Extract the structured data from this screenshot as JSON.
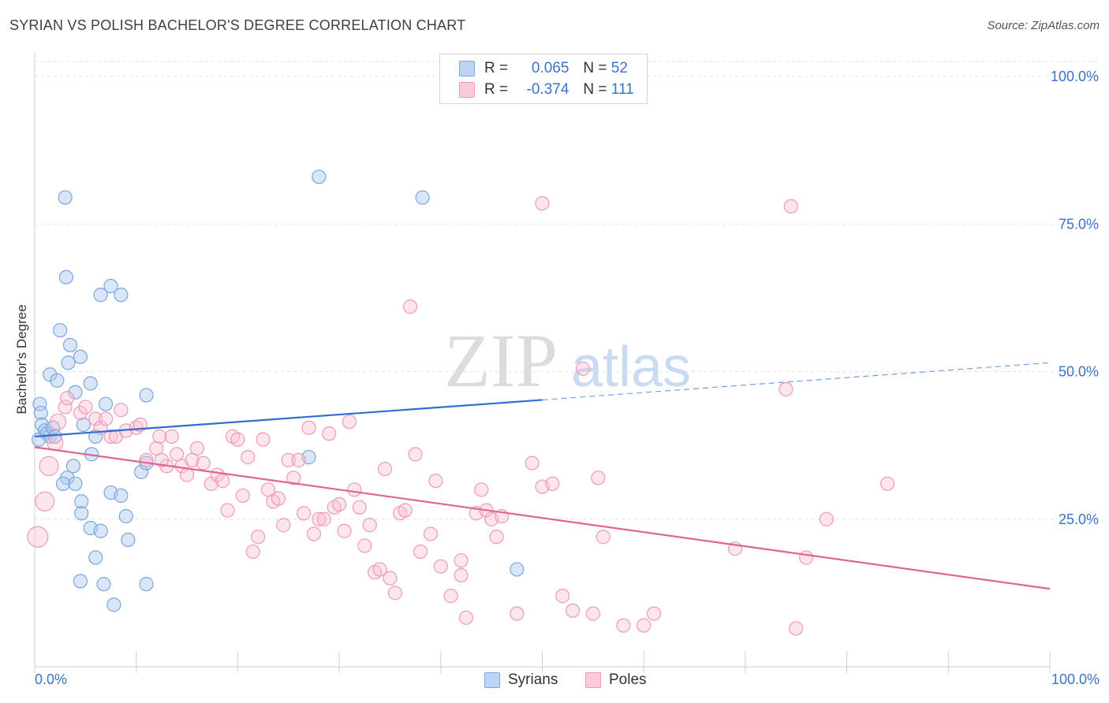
{
  "title": "SYRIAN VS POLISH BACHELOR'S DEGREE CORRELATION CHART",
  "source": "Source: ZipAtlas.com",
  "watermark": {
    "zip": "ZIP",
    "atlas": "atlas"
  },
  "legend": {
    "r_label": "R =",
    "n_label": "N =",
    "series": [
      {
        "name": "Syrians",
        "r": "0.065",
        "n": "52",
        "color": "#8fb8e8",
        "line": "#2f6ecf"
      },
      {
        "name": "Poles",
        "r": "-0.374",
        "n": "111",
        "color": "#f5a9c2",
        "line": "#e06592"
      }
    ]
  },
  "chart_data": {
    "type": "scatter",
    "title": "SYRIAN VS POLISH BACHELOR'S DEGREE CORRELATION CHART",
    "xlabel": "",
    "ylabel": "Bachelor's Degree",
    "xlim": [
      0,
      100
    ],
    "ylim": [
      0,
      100
    ],
    "x_tick_labels": [
      "0.0%",
      "100.0%"
    ],
    "y_ticks": [
      25,
      50,
      75,
      100
    ],
    "y_tick_labels": [
      "25.0%",
      "50.0%",
      "75.0%",
      "100.0%"
    ],
    "grid": true,
    "series": [
      {
        "name": "Syrians",
        "trend": {
          "x0": 0,
          "y0": 39,
          "x1": 50,
          "y1": 45.2,
          "dashed_to": 100,
          "dashed_y": 51.5
        },
        "points": [
          [
            0.5,
            44.5
          ],
          [
            0.6,
            43
          ],
          [
            0.7,
            41
          ],
          [
            1,
            40
          ],
          [
            1.2,
            39.5
          ],
          [
            1.5,
            39
          ],
          [
            0.4,
            38.5
          ],
          [
            1.8,
            40.5
          ],
          [
            2,
            39
          ],
          [
            1.5,
            49.5
          ],
          [
            2.2,
            48.5
          ],
          [
            2.5,
            57
          ],
          [
            3.5,
            54.5
          ],
          [
            3.3,
            51.5
          ],
          [
            4.5,
            52.5
          ],
          [
            5.5,
            48
          ],
          [
            4,
            46.5
          ],
          [
            3,
            79.5
          ],
          [
            3.1,
            66
          ],
          [
            6.5,
            63
          ],
          [
            7.5,
            64.5
          ],
          [
            8.5,
            63
          ],
          [
            4.8,
            41
          ],
          [
            6,
            39
          ],
          [
            7,
            44.5
          ],
          [
            3.8,
            34
          ],
          [
            3.2,
            32
          ],
          [
            2.8,
            31
          ],
          [
            4,
            31
          ],
          [
            4.6,
            28
          ],
          [
            7.5,
            29.5
          ],
          [
            8.5,
            29
          ],
          [
            9,
            25.5
          ],
          [
            4.6,
            26
          ],
          [
            5.5,
            23.5
          ],
          [
            6.5,
            23
          ],
          [
            9.2,
            21.5
          ],
          [
            6,
            18.5
          ],
          [
            4.5,
            14.5
          ],
          [
            6.8,
            14
          ],
          [
            11,
            14
          ],
          [
            7.8,
            10.5
          ],
          [
            10.5,
            33
          ],
          [
            11,
            34.5
          ],
          [
            11,
            46
          ],
          [
            28,
            83
          ],
          [
            38.2,
            79.5
          ],
          [
            27,
            35.5
          ],
          [
            47.5,
            16.5
          ],
          [
            5.6,
            36
          ]
        ]
      },
      {
        "name": "Poles",
        "trend": {
          "x0": 0,
          "y0": 37.2,
          "x1": 100,
          "y1": 13.2
        },
        "points": [
          [
            0.3,
            22
          ],
          [
            1,
            28
          ],
          [
            1.4,
            34
          ],
          [
            2,
            38
          ],
          [
            2.3,
            41.5
          ],
          [
            3,
            44
          ],
          [
            3.2,
            45.5
          ],
          [
            4.5,
            43
          ],
          [
            5,
            44
          ],
          [
            6,
            42
          ],
          [
            6.5,
            40.5
          ],
          [
            7,
            42
          ],
          [
            7.5,
            39
          ],
          [
            8,
            39
          ],
          [
            8.5,
            43.5
          ],
          [
            9,
            40
          ],
          [
            10,
            40.5
          ],
          [
            10.4,
            41
          ],
          [
            11,
            35
          ],
          [
            12,
            37
          ],
          [
            12.3,
            39
          ],
          [
            13,
            34
          ],
          [
            13.5,
            39
          ],
          [
            14,
            36
          ],
          [
            14.5,
            34
          ],
          [
            15,
            32.5
          ],
          [
            15.5,
            35
          ],
          [
            16,
            37
          ],
          [
            16.6,
            34.5
          ],
          [
            17.4,
            31
          ],
          [
            18,
            32.5
          ],
          [
            18.5,
            31.5
          ],
          [
            19,
            26.5
          ],
          [
            19.5,
            39
          ],
          [
            20,
            38.5
          ],
          [
            20.5,
            29
          ],
          [
            21,
            35.5
          ],
          [
            21.5,
            19.5
          ],
          [
            22,
            22
          ],
          [
            22.5,
            38.5
          ],
          [
            23,
            30
          ],
          [
            23.5,
            28
          ],
          [
            24,
            28.5
          ],
          [
            24.5,
            24
          ],
          [
            25,
            35
          ],
          [
            25.5,
            32
          ],
          [
            26,
            35
          ],
          [
            26.5,
            26
          ],
          [
            27,
            40.5
          ],
          [
            27.5,
            22.5
          ],
          [
            28,
            25
          ],
          [
            28.5,
            25
          ],
          [
            29,
            39.5
          ],
          [
            29.5,
            27
          ],
          [
            30,
            27.5
          ],
          [
            30.5,
            23
          ],
          [
            31,
            41.5
          ],
          [
            31.5,
            30
          ],
          [
            32,
            27
          ],
          [
            32.5,
            20.5
          ],
          [
            33,
            24
          ],
          [
            33.5,
            16
          ],
          [
            34,
            16.5
          ],
          [
            34.5,
            33.5
          ],
          [
            35,
            15
          ],
          [
            35.5,
            12.5
          ],
          [
            36,
            26
          ],
          [
            36.5,
            26.5
          ],
          [
            37,
            61
          ],
          [
            37.5,
            36
          ],
          [
            38,
            19.5
          ],
          [
            39,
            22.5
          ],
          [
            39.5,
            31.5
          ],
          [
            40,
            17
          ],
          [
            41,
            12
          ],
          [
            42,
            15.5
          ],
          [
            42,
            18
          ],
          [
            42.5,
            8.3
          ],
          [
            43.5,
            26
          ],
          [
            44,
            30
          ],
          [
            44.5,
            26.5
          ],
          [
            45,
            25
          ],
          [
            45.5,
            22
          ],
          [
            46,
            25.5
          ],
          [
            47.5,
            9
          ],
          [
            49,
            34.5
          ],
          [
            50,
            30.5
          ],
          [
            50,
            78.5
          ],
          [
            51,
            31
          ],
          [
            52,
            12
          ],
          [
            53,
            9.5
          ],
          [
            54,
            50.5
          ],
          [
            55,
            9
          ],
          [
            55.5,
            32
          ],
          [
            56,
            22
          ],
          [
            58,
            7
          ],
          [
            60,
            7
          ],
          [
            61,
            9
          ],
          [
            69,
            20
          ],
          [
            74,
            47
          ],
          [
            74.5,
            78
          ],
          [
            75,
            6.5
          ],
          [
            76,
            18.5
          ],
          [
            78,
            25
          ],
          [
            84,
            31
          ],
          [
            12.5,
            35
          ]
        ]
      }
    ]
  }
}
